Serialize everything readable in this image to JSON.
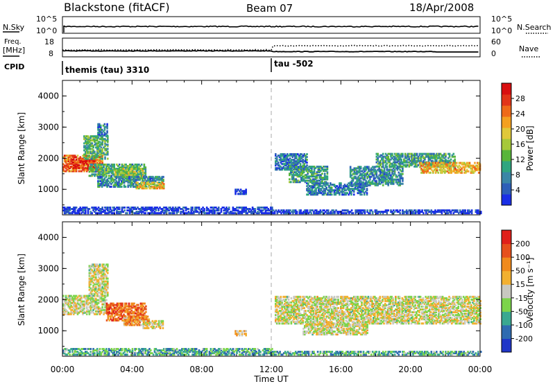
{
  "header": {
    "station": "Blackstone (fitACF)",
    "beam": "Beam 07",
    "date": "18/Apr/2008"
  },
  "status_panels": {
    "nsky_label": "N.Sky",
    "nsky_ticks": [
      "10^5",
      "10^0"
    ],
    "nsearch_label": "N.Search",
    "freq_label": "Freq.",
    "freq_unit": "[MHz]",
    "freq_ticks": [
      "18",
      "8"
    ],
    "nave_label": "Nave",
    "nave_ticks": [
      "60",
      "0"
    ],
    "cpid_label": "CPID",
    "cpid_segments": [
      "themis (tau) 3310",
      "tau -502"
    ]
  },
  "x_axis": {
    "label": "Time UT",
    "ticks": [
      "00:00",
      "04:00",
      "08:00",
      "12:00",
      "16:00",
      "20:00",
      "00:00"
    ]
  },
  "chart_data": [
    {
      "type": "heatmap",
      "name": "power",
      "ylabel": "Slant Range [km]",
      "yticks": [
        "4000",
        "3000",
        "2000",
        "1000"
      ],
      "ylim": [
        180,
        4500
      ],
      "xlim_hours": [
        0,
        24
      ],
      "colorbar_label": "Power [dB]",
      "colorbar_ticks": [
        "28",
        "24",
        "20",
        "16",
        "12",
        "8",
        "4"
      ],
      "colorbar_colors": [
        "#1a2fe6",
        "#2d5fb8",
        "#3a86a6",
        "#2fa57f",
        "#58b53a",
        "#a6c83a",
        "#e0c83a",
        "#f4a020",
        "#ef6a18",
        "#e23418",
        "#d90f10"
      ],
      "regions": [
        {
          "t0": 0.0,
          "t1": 2.3,
          "r0": 1550,
          "r1": 2050,
          "level": 0.75
        },
        {
          "t0": 0.3,
          "t1": 1.8,
          "r0": 1650,
          "r1": 1950,
          "level": 0.9
        },
        {
          "t0": 1.2,
          "t1": 2.6,
          "r0": 1950,
          "r1": 2700,
          "level": 0.35
        },
        {
          "t0": 2.0,
          "t1": 2.6,
          "r0": 2700,
          "r1": 3100,
          "level": 0.2
        },
        {
          "t0": 1.5,
          "t1": 4.8,
          "r0": 1400,
          "r1": 1800,
          "level": 0.35
        },
        {
          "t0": 3.0,
          "t1": 4.6,
          "r0": 1350,
          "r1": 1650,
          "level": 0.5
        },
        {
          "t0": 2.0,
          "t1": 5.8,
          "r0": 1050,
          "r1": 1400,
          "level": 0.25
        },
        {
          "t0": 4.2,
          "t1": 5.8,
          "r0": 1000,
          "r1": 1200,
          "level": 0.6
        },
        {
          "t0": 9.9,
          "t1": 10.5,
          "r0": 820,
          "r1": 960,
          "level": 0.1
        },
        {
          "t0": 12.2,
          "t1": 14.0,
          "r0": 1600,
          "r1": 2100,
          "level": 0.2
        },
        {
          "t0": 13.0,
          "t1": 15.2,
          "r0": 1200,
          "r1": 1700,
          "level": 0.3
        },
        {
          "t0": 14.0,
          "t1": 17.5,
          "r0": 800,
          "r1": 1200,
          "level": 0.2
        },
        {
          "t0": 16.5,
          "t1": 19.5,
          "r0": 1100,
          "r1": 1700,
          "level": 0.25
        },
        {
          "t0": 18.0,
          "t1": 22.5,
          "r0": 1700,
          "r1": 2150,
          "level": 0.3
        },
        {
          "t0": 20.5,
          "t1": 24.0,
          "r0": 1500,
          "r1": 1850,
          "level": 0.65
        },
        {
          "t0": 0.0,
          "t1": 12.0,
          "r0": 200,
          "r1": 420,
          "level": 0.05
        },
        {
          "t0": 12.0,
          "t1": 24.0,
          "r0": 200,
          "r1": 330,
          "level": 0.05
        }
      ]
    },
    {
      "type": "heatmap",
      "name": "velocity",
      "ylabel": "Slant Range [km]",
      "yticks": [
        "4000",
        "3000",
        "2000",
        "1000"
      ],
      "ylim": [
        180,
        4500
      ],
      "xlim_hours": [
        0,
        24
      ],
      "colorbar_label": "Velocity [m s⁻¹]",
      "colorbar_ticks": [
        "200",
        "100",
        "50",
        "15",
        "-15",
        "-50",
        "-100",
        "-200"
      ],
      "colorbar_colors": [
        "#2036c8",
        "#2f6bb0",
        "#3aa890",
        "#7cd44a",
        "#c8c8c0",
        "#f2b030",
        "#f08a1c",
        "#e6501c",
        "#e0201a"
      ],
      "regions": [
        {
          "t0": 0.0,
          "t1": 2.5,
          "r0": 1500,
          "r1": 2100,
          "level": 0.5
        },
        {
          "t0": 1.5,
          "t1": 2.6,
          "r0": 2100,
          "r1": 3100,
          "level": 0.5
        },
        {
          "t0": 2.5,
          "t1": 4.8,
          "r0": 1300,
          "r1": 1850,
          "level": 0.8
        },
        {
          "t0": 3.5,
          "t1": 5.0,
          "r0": 1150,
          "r1": 1450,
          "level": 0.7
        },
        {
          "t0": 4.6,
          "t1": 5.8,
          "r0": 1050,
          "r1": 1300,
          "level": 0.5
        },
        {
          "t0": 9.9,
          "t1": 10.5,
          "r0": 820,
          "r1": 960,
          "level": 0.6
        },
        {
          "t0": 12.2,
          "t1": 24.0,
          "r0": 1200,
          "r1": 2100,
          "level": 0.5
        },
        {
          "t0": 13.8,
          "t1": 17.5,
          "r0": 850,
          "r1": 1200,
          "level": 0.5
        },
        {
          "t0": 0.0,
          "t1": 12.0,
          "r0": 200,
          "r1": 420,
          "level": 0.3
        },
        {
          "t0": 12.0,
          "t1": 24.0,
          "r0": 200,
          "r1": 330,
          "level": 0.3
        }
      ]
    }
  ]
}
